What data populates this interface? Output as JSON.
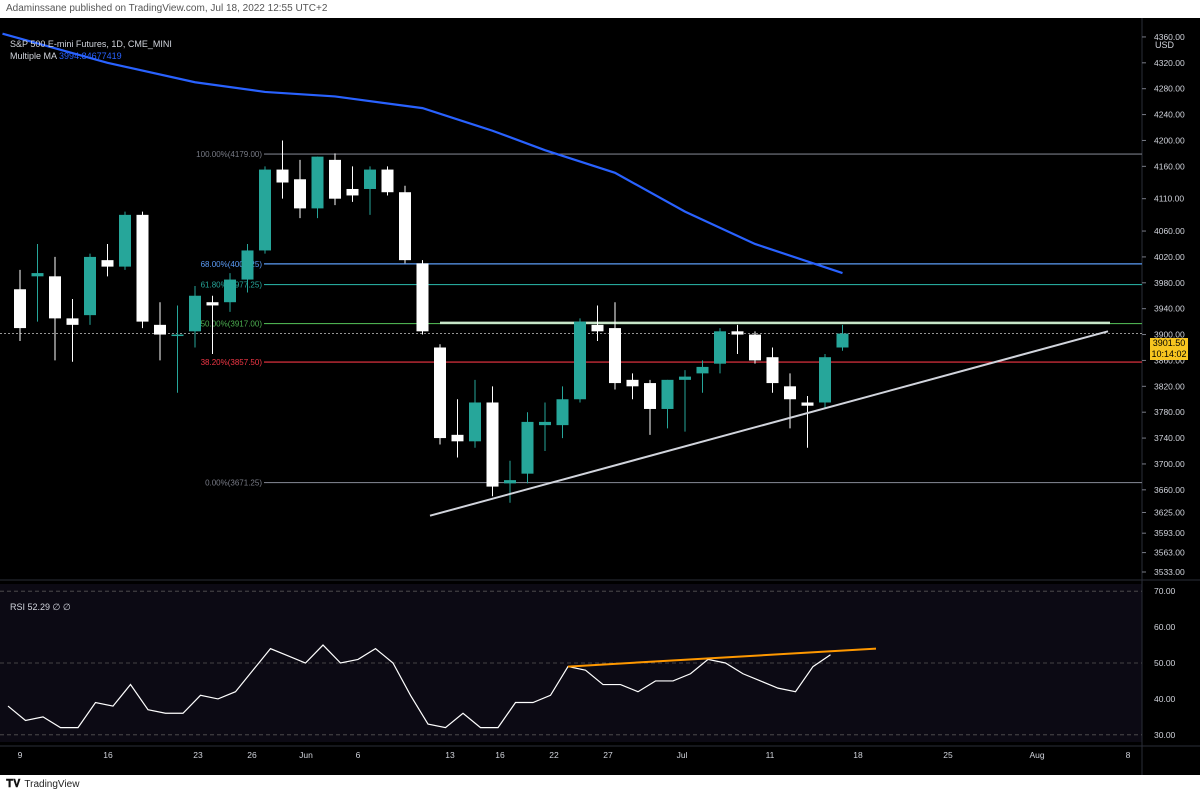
{
  "header": {
    "publish_info": "Adaminssane published on TradingView.com, Jul 18, 2022 12:55 UTC+2"
  },
  "footer": {
    "logo_text": "TradingView"
  },
  "legend": {
    "symbol": "S&P 500 E-mini Futures, 1D, CME_MINI",
    "ma_label": "Multiple MA",
    "ma_value": "3994.84677419",
    "rsi_label": "RSI 52.29 ∅ ∅"
  },
  "price_axis": {
    "currency": "USD",
    "ticks": [
      "4360.00",
      "4320.00",
      "4280.00",
      "4240.00",
      "4200.00",
      "4160.00",
      "4110.00",
      "4060.00",
      "4020.00",
      "3980.00",
      "3940.00",
      "3900.00",
      "3860.00",
      "3820.00",
      "3780.00",
      "3740.00",
      "3700.00",
      "3660.00",
      "3625.00",
      "3593.00",
      "3563.00",
      "3533.00"
    ],
    "last_price": "3901.50",
    "countdown": "10:14:02"
  },
  "colors": {
    "background": "#000000",
    "up_candle": "#26a69a",
    "down_candle": "#ffffff",
    "ma_line": "#2962ff",
    "fib_100": "#787b86",
    "fib_68": "#5b9cf6",
    "fib_618": "#26a69a",
    "fib_50": "#4caf50",
    "fib_382": "#f23645",
    "fib_0": "#787b86",
    "trendline": "#d1d4dc",
    "rsi_line": "#ffffff",
    "rsi_trend": "#ff9800",
    "last_price_tag": "#f7c520"
  },
  "chart_data": [
    {
      "type": "candlestick",
      "title": "S&P 500 E-mini Futures, 1D, CME_MINI",
      "ylim": [
        3533,
        4380
      ],
      "x_tick_labels": [
        "9",
        "16",
        "23",
        "26",
        "Jun",
        "6",
        "13",
        "16",
        "22",
        "27",
        "Jul",
        "11",
        "18",
        "25",
        "Aug",
        "8"
      ],
      "candles": [
        {
          "date": "May 9",
          "open": 3970,
          "high": 4000,
          "low": 3890,
          "close": 3910
        },
        {
          "date": "May 10",
          "open": 3990,
          "high": 4040,
          "low": 3920,
          "close": 3995
        },
        {
          "date": "May 11",
          "open": 3990,
          "high": 4020,
          "low": 3860,
          "close": 3925
        },
        {
          "date": "May 12",
          "open": 3925,
          "high": 3955,
          "low": 3858,
          "close": 3915
        },
        {
          "date": "May 13",
          "open": 3930,
          "high": 4025,
          "low": 3915,
          "close": 4020
        },
        {
          "date": "May 16",
          "open": 4015,
          "high": 4040,
          "low": 3990,
          "close": 4005
        },
        {
          "date": "May 17",
          "open": 4005,
          "high": 4090,
          "low": 4000,
          "close": 4085
        },
        {
          "date": "May 18",
          "open": 4085,
          "high": 4090,
          "low": 3910,
          "close": 3920
        },
        {
          "date": "May 19",
          "open": 3915,
          "high": 3950,
          "low": 3860,
          "close": 3900
        },
        {
          "date": "May 20",
          "open": 3900,
          "high": 3945,
          "low": 3810,
          "close": 3900
        },
        {
          "date": "May 23",
          "open": 3905,
          "high": 3975,
          "low": 3880,
          "close": 3960
        },
        {
          "date": "May 24",
          "open": 3950,
          "high": 3960,
          "low": 3870,
          "close": 3945
        },
        {
          "date": "May 25",
          "open": 3950,
          "high": 3995,
          "low": 3935,
          "close": 3985
        },
        {
          "date": "May 26",
          "open": 3985,
          "high": 4040,
          "low": 3965,
          "close": 4030
        },
        {
          "date": "May 27",
          "open": 4030,
          "high": 4160,
          "low": 4025,
          "close": 4155
        },
        {
          "date": "May 31",
          "open": 4155,
          "high": 4200,
          "low": 4110,
          "close": 4135
        },
        {
          "date": "Jun 1",
          "open": 4140,
          "high": 4170,
          "low": 4080,
          "close": 4095
        },
        {
          "date": "Jun 2",
          "open": 4095,
          "high": 4175,
          "low": 4080,
          "close": 4175
        },
        {
          "date": "Jun 3",
          "open": 4170,
          "high": 4180,
          "low": 4100,
          "close": 4110
        },
        {
          "date": "Jun 6",
          "open": 4125,
          "high": 4160,
          "low": 4105,
          "close": 4115
        },
        {
          "date": "Jun 7",
          "open": 4125,
          "high": 4160,
          "low": 4085,
          "close": 4155
        },
        {
          "date": "Jun 8",
          "open": 4155,
          "high": 4160,
          "low": 4115,
          "close": 4120
        },
        {
          "date": "Jun 9",
          "open": 4120,
          "high": 4130,
          "low": 4010,
          "close": 4015
        },
        {
          "date": "Jun 10",
          "open": 4010,
          "high": 4015,
          "low": 3900,
          "close": 3905
        },
        {
          "date": "Jun 13",
          "open": 3880,
          "high": 3885,
          "low": 3730,
          "close": 3740
        },
        {
          "date": "Jun 14",
          "open": 3745,
          "high": 3800,
          "low": 3710,
          "close": 3735
        },
        {
          "date": "Jun 15",
          "open": 3735,
          "high": 3830,
          "low": 3725,
          "close": 3795
        },
        {
          "date": "Jun 16",
          "open": 3795,
          "high": 3820,
          "low": 3650,
          "close": 3665
        },
        {
          "date": "Jun 17",
          "open": 3670,
          "high": 3705,
          "low": 3640,
          "close": 3675
        },
        {
          "date": "Jun 21",
          "open": 3685,
          "high": 3780,
          "low": 3670,
          "close": 3765
        },
        {
          "date": "Jun 22",
          "open": 3760,
          "high": 3795,
          "low": 3720,
          "close": 3765
        },
        {
          "date": "Jun 23",
          "open": 3760,
          "high": 3820,
          "low": 3740,
          "close": 3800
        },
        {
          "date": "Jun 24",
          "open": 3800,
          "high": 3925,
          "low": 3795,
          "close": 3920
        },
        {
          "date": "Jun 27",
          "open": 3915,
          "high": 3945,
          "low": 3890,
          "close": 3905
        },
        {
          "date": "Jun 28",
          "open": 3910,
          "high": 3950,
          "low": 3815,
          "close": 3825
        },
        {
          "date": "Jun 29",
          "open": 3830,
          "high": 3840,
          "low": 3800,
          "close": 3820
        },
        {
          "date": "Jun 30",
          "open": 3825,
          "high": 3830,
          "low": 3745,
          "close": 3785
        },
        {
          "date": "Jul 1",
          "open": 3785,
          "high": 3830,
          "low": 3755,
          "close": 3830
        },
        {
          "date": "Jul 5",
          "open": 3830,
          "high": 3845,
          "low": 3750,
          "close": 3835
        },
        {
          "date": "Jul 6",
          "open": 3840,
          "high": 3860,
          "low": 3810,
          "close": 3850
        },
        {
          "date": "Jul 7",
          "open": 3855,
          "high": 3910,
          "low": 3840,
          "close": 3905
        },
        {
          "date": "Jul 8",
          "open": 3905,
          "high": 3915,
          "low": 3870,
          "close": 3900
        },
        {
          "date": "Jul 11",
          "open": 3900,
          "high": 3905,
          "low": 3855,
          "close": 3860
        },
        {
          "date": "Jul 12",
          "open": 3865,
          "high": 3880,
          "low": 3810,
          "close": 3825
        },
        {
          "date": "Jul 13",
          "open": 3820,
          "high": 3840,
          "low": 3755,
          "close": 3800
        },
        {
          "date": "Jul 14",
          "open": 3795,
          "high": 3805,
          "low": 3725,
          "close": 3790
        },
        {
          "date": "Jul 15",
          "open": 3795,
          "high": 3870,
          "low": 3785,
          "close": 3865
        },
        {
          "date": "Jul 18",
          "open": 3880,
          "high": 3915,
          "low": 3875,
          "close": 3901.5
        }
      ],
      "moving_average": {
        "name": "Multiple MA",
        "points": [
          [
            "May 6",
            4365
          ],
          [
            "May 16",
            4320
          ],
          [
            "May 23",
            4290
          ],
          [
            "May 27",
            4275
          ],
          [
            "Jun 3",
            4268
          ],
          [
            "Jun 10",
            4250
          ],
          [
            "Jun 16",
            4215
          ],
          [
            "Jun 22",
            4185
          ],
          [
            "Jun 28",
            4150
          ],
          [
            "Jul 5",
            4090
          ],
          [
            "Jul 11",
            4040
          ],
          [
            "Jul 18",
            3995
          ]
        ]
      },
      "fibonacci": [
        {
          "label": "100.00%(4179.00)",
          "value": 4179.0
        },
        {
          "label": "68.00%(4009.25)",
          "value": 4009.25
        },
        {
          "label": "61.80%(3977.25)",
          "value": 3977.25
        },
        {
          "label": "50.00%(3917.00)",
          "value": 3917.0
        },
        {
          "label": "38.20%(3857.50)",
          "value": 3857.5
        },
        {
          "label": "0.00%(3671.25)",
          "value": 3671.25
        }
      ],
      "trendline": {
        "from": [
          "Jun 13",
          3620
        ],
        "to": [
          "Aug 5",
          3905
        ]
      },
      "resistance_line": {
        "from": [
          "Jun 13",
          3918
        ],
        "to": [
          "Aug 5",
          3918
        ]
      }
    },
    {
      "type": "line",
      "title": "RSI",
      "ylim": [
        28,
        72
      ],
      "y_tick_labels": [
        "70.00",
        "60.00",
        "50.00",
        "40.00",
        "30.00"
      ],
      "values": [
        38,
        34,
        35,
        32,
        32,
        39,
        38,
        44,
        37,
        36,
        36,
        41,
        40,
        42,
        48,
        54,
        52,
        50,
        55,
        50,
        51,
        54,
        50,
        41,
        33,
        32,
        36,
        32,
        32,
        39,
        39,
        41,
        49,
        48,
        44,
        44,
        42,
        45,
        45,
        47,
        51,
        50,
        47,
        45,
        43,
        42,
        49,
        52.29
      ],
      "trendline": {
        "from": [
          32,
          49
        ],
        "to": [
          50,
          54
        ]
      }
    }
  ]
}
